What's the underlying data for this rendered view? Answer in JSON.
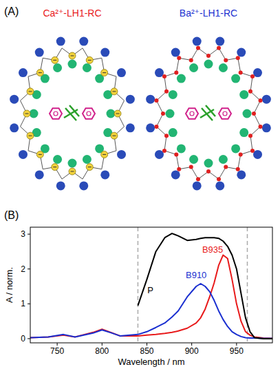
{
  "diagram": {
    "panel_label": "(A)",
    "items": [
      {
        "title": "Ca²⁺-LH1-RC",
        "color": "#e8191a"
      },
      {
        "title": "Ba²⁺-LH1-RC",
        "color": "#1a2fd0"
      }
    ]
  },
  "chart_data": {
    "type": "line",
    "panel_label": "(B)",
    "x_label": "Wavelength / nm",
    "y_label": "A / norm.",
    "xlim": [
      720,
      990
    ],
    "xticks": [
      750,
      800,
      850,
      900,
      950
    ],
    "ylim": [
      -0.12,
      3.2
    ],
    "yticks": [
      0,
      1,
      2,
      3
    ],
    "vlines": [
      840,
      962
    ],
    "x": [
      720,
      740,
      757,
      770,
      790,
      800,
      810,
      820,
      840,
      850,
      860,
      870,
      878,
      885,
      895,
      905,
      910,
      915,
      920,
      925,
      930,
      935,
      940,
      945,
      950,
      955,
      960,
      965,
      970,
      980,
      990
    ],
    "series": [
      {
        "name": "B935",
        "color": "#e8191a",
        "values": [
          0.03,
          0.05,
          0.1,
          0.05,
          0.18,
          0.27,
          0.18,
          0.08,
          0.08,
          0.1,
          0.12,
          0.15,
          0.18,
          0.22,
          0.3,
          0.45,
          0.6,
          0.85,
          1.2,
          1.6,
          2.1,
          2.4,
          2.3,
          1.7,
          1.0,
          0.5,
          0.2,
          0.1,
          0.05,
          0.02,
          0.01
        ]
      },
      {
        "name": "B910",
        "color": "#1a2fd0",
        "values": [
          0.03,
          0.05,
          0.12,
          0.05,
          0.16,
          0.25,
          0.17,
          0.08,
          0.12,
          0.2,
          0.32,
          0.45,
          0.62,
          0.8,
          1.2,
          1.5,
          1.58,
          1.5,
          1.35,
          1.1,
          0.8,
          0.55,
          0.35,
          0.2,
          0.12,
          0.06,
          0.03,
          0.02,
          0.02,
          0.01,
          0.01
        ]
      },
      {
        "name": "P",
        "color": "#000000",
        "values": [
          null,
          null,
          null,
          null,
          null,
          null,
          null,
          null,
          0.95,
          1.7,
          2.5,
          2.9,
          3.02,
          2.95,
          2.82,
          2.85,
          2.88,
          2.9,
          2.9,
          2.9,
          2.88,
          2.8,
          2.65,
          2.4,
          2.0,
          1.3,
          0.6,
          0.2,
          0.03,
          0,
          0
        ]
      }
    ]
  }
}
